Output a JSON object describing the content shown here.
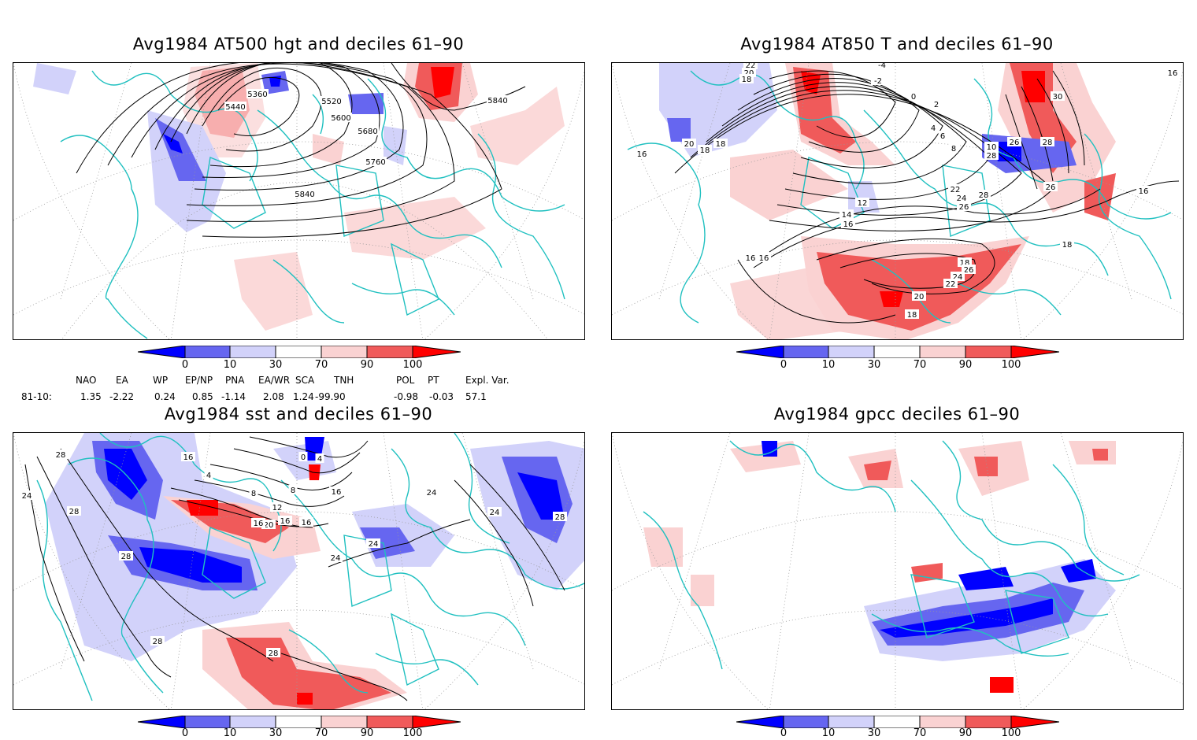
{
  "panels": {
    "p1": {
      "title": "Avg1984 AT500 hgt and deciles 61–90",
      "contour_labels": [
        "5360",
        "5440",
        "5520",
        "5600",
        "5680",
        "5760",
        "5840",
        "5840"
      ]
    },
    "p2": {
      "title": "Avg1984 AT850 T and deciles 61–90",
      "contour_labels": [
        "22",
        "20",
        "18",
        "-4",
        "-2",
        "0",
        "2",
        "4",
        "6",
        "8",
        "10",
        "12",
        "14",
        "16",
        "18",
        "18",
        "16",
        "20",
        "22",
        "24",
        "26",
        "28",
        "28",
        "26",
        "30",
        "28",
        "26",
        "16",
        "18",
        "18",
        "26",
        "24",
        "22",
        "20",
        "18",
        "16",
        "16",
        "16"
      ]
    },
    "p3": {
      "title": "Avg1984 sst and deciles 61–90",
      "contour_labels": [
        "28",
        "24",
        "28",
        "28",
        "16",
        "4",
        "8",
        "12",
        "16",
        "20",
        "16",
        "16",
        "0",
        "4",
        "8",
        "16",
        "24",
        "24",
        "24",
        "24",
        "28",
        "28",
        "28"
      ]
    },
    "p4": {
      "title": "Avg1984 gpcc deciles 61–90",
      "contour_labels": []
    }
  },
  "colorbar": {
    "labels": [
      "0",
      "10",
      "30",
      "70",
      "90",
      "100"
    ],
    "colors": {
      "deep_blue": "#0000ff",
      "mid_blue": "#6666f0",
      "light_blue": "#d2d2fa",
      "white": "#ffffff",
      "light_red": "#fad2d2",
      "mid_red": "#f05a5a",
      "deep_red": "#ff0000"
    }
  },
  "indices": {
    "headers": [
      "NAO",
      "EA",
      "WP",
      "EP/NP",
      "PNA",
      "EA/WR",
      "SCA",
      "TNH",
      "POL",
      "PT",
      "Expl. Var."
    ],
    "row_label": "81-10:",
    "values": [
      "1.35",
      "-2.22",
      "0.24",
      "0.85",
      "-1.14",
      "2.08",
      "1.24",
      "-99.90",
      "-0.98",
      "-0.03",
      "57.1"
    ]
  },
  "map_colors": {
    "coast": "#20c0c0",
    "grid": "#999999",
    "contour": "#000000"
  }
}
